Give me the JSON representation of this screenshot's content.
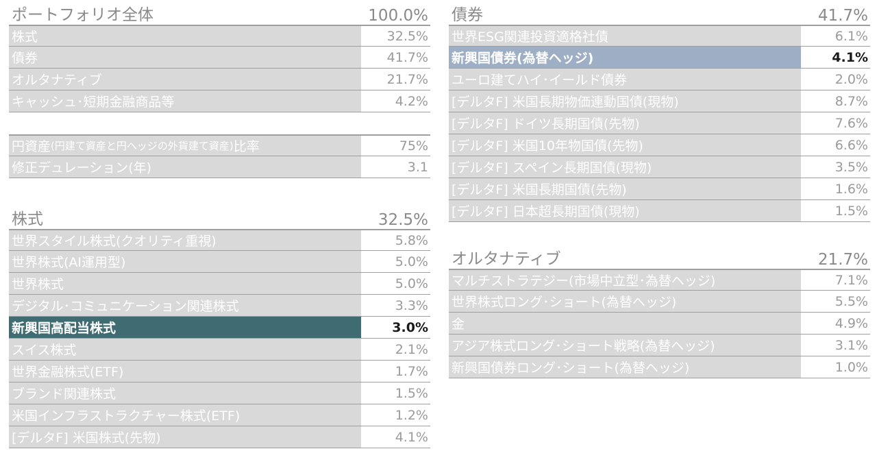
{
  "portfolio": {
    "title": "ポートフォリオ全体",
    "total": "100.0%",
    "rows": [
      {
        "name": "株式",
        "value": "32.5%"
      },
      {
        "name": "債券",
        "value": "41.7%"
      },
      {
        "name": "オルタナティブ",
        "value": "21.7%"
      },
      {
        "name": "キャッシュ･短期金融商品等",
        "value": "4.2%"
      }
    ]
  },
  "metrics": {
    "rows": [
      {
        "name_main": "円資産",
        "name_sub": "(円建て資産と円ヘッジの外貨建て資産)",
        "name_tail": "比率",
        "value": "75%"
      },
      {
        "name_main": "修正デュレーション(年)",
        "value": "3.1"
      }
    ]
  },
  "equity": {
    "title": "株式",
    "total": "32.5%",
    "rows": [
      {
        "name": "世界スタイル株式(クオリティ重視)",
        "value": "5.8%"
      },
      {
        "name": "世界株式(AI運用型)",
        "value": "5.0%"
      },
      {
        "name": "世界株式",
        "value": "5.0%"
      },
      {
        "name": "デジタル･コミュニケーション関連株式",
        "value": "3.3%"
      },
      {
        "name": "新興国高配当株式",
        "value": "3.0%"
      },
      {
        "name": "スイス株式",
        "value": "2.1%"
      },
      {
        "name": "世界金融株式(ETF)",
        "value": "1.7%"
      },
      {
        "name": "ブランド関連株式",
        "value": "1.5%"
      },
      {
        "name": "米国インフラストラクチャー株式(ETF)",
        "value": "1.2%"
      },
      {
        "name": "[デルタF] 米国株式(先物)",
        "value": "4.1%"
      }
    ]
  },
  "bonds": {
    "title": "債券",
    "total": "41.7%",
    "rows": [
      {
        "name": "世界ESG関連投資適格社債",
        "value": "6.1%"
      },
      {
        "name": "新興国債券(為替ヘッジ)",
        "value": "4.1%"
      },
      {
        "name": "ユーロ建てハイ･イールド債券",
        "value": "2.0%"
      },
      {
        "name": "[デルタF] 米国長期物価連動国債(現物)",
        "value": "8.7%"
      },
      {
        "name": "[デルタF] ドイツ長期国債(先物)",
        "value": "7.6%"
      },
      {
        "name": "[デルタF] 米国10年物国債(先物)",
        "value": "6.6%"
      },
      {
        "name": "[デルタF] スペイン長期国債(現物)",
        "value": "3.5%"
      },
      {
        "name": "[デルタF] 米国長期国債(先物)",
        "value": "1.6%"
      },
      {
        "name": "[デルタF] 日本超長期国債(現物)",
        "value": "1.5%"
      }
    ]
  },
  "alternative": {
    "title": "オルタナティブ",
    "total": "21.7%",
    "rows": [
      {
        "name": "マルチストラテジー(市場中立型･為替ヘッジ)",
        "value": "7.1%"
      },
      {
        "name": "世界株式ロング･ショート(為替ヘッジ)",
        "value": "5.5%"
      },
      {
        "name": "金",
        "value": "4.9%"
      },
      {
        "name": "アジア株式ロング･ショート戦略(為替ヘッジ)",
        "value": "3.1%"
      },
      {
        "name": "新興国債券ロング･ショート(為替ヘッジ)",
        "value": "1.0%"
      }
    ]
  },
  "colors": {
    "cell_bg": "#d9d9d9",
    "highlight_teal": "#3f6b72",
    "highlight_blue": "#9eaec4",
    "value_text": "#9a9a9a"
  }
}
